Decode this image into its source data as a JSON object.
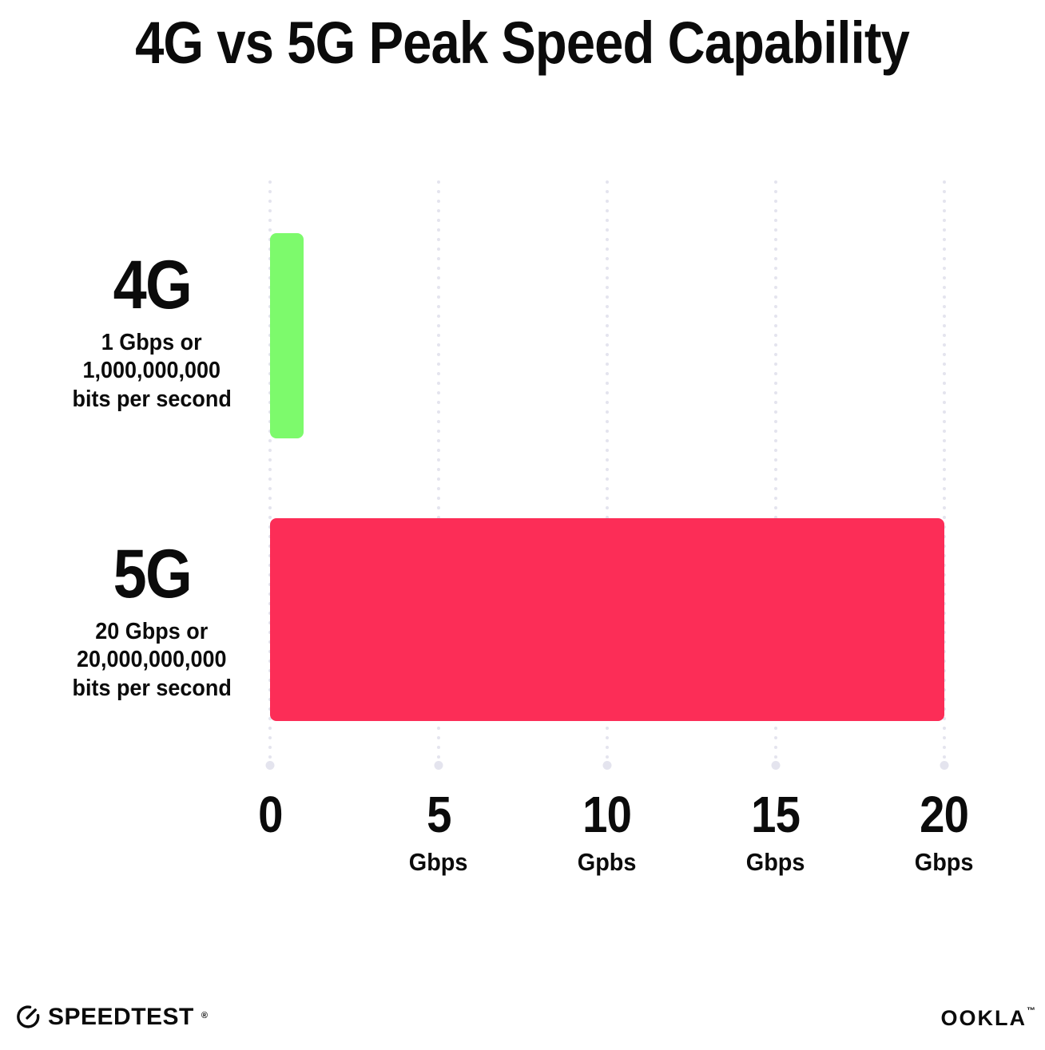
{
  "title": "4G vs 5G Peak Speed Capability",
  "chart_data": {
    "type": "bar",
    "orientation": "horizontal",
    "title": "4G vs 5G Peak Speed Capability",
    "categories": [
      "4G",
      "5G"
    ],
    "values": [
      1,
      20
    ],
    "value_unit": "Gbps",
    "xlim": [
      0,
      20
    ],
    "x_ticks": [
      {
        "label": "0",
        "unit": ""
      },
      {
        "label": "5",
        "unit": "Gbps"
      },
      {
        "label": "10",
        "unit": "Gpbs"
      },
      {
        "label": "15",
        "unit": "Gbps"
      },
      {
        "label": "20",
        "unit": "Gbps"
      }
    ],
    "gridlines": "dotted-vertical",
    "legend": "none",
    "bar_colors": [
      "#7DFA6C",
      "#FC2D57"
    ],
    "rows": [
      {
        "name": "4G",
        "desc_line1": "1 Gbps or",
        "desc_line2": "1,000,000,000",
        "desc_line3": "bits per second",
        "value_gbps": 1
      },
      {
        "name": "5G",
        "desc_line1": "20 Gbps or",
        "desc_line2": "20,000,000,000",
        "desc_line3": "bits per second",
        "value_gbps": 20
      }
    ]
  },
  "footer": {
    "speedtest_label": "SPEEDTEST",
    "speedtest_trademark": "®",
    "ookla_label": "OOKLA",
    "ookla_trademark": "™"
  },
  "colors": {
    "background": "#FFFFFF",
    "text": "#0B0B0B",
    "bar_4g": "#7DFA6C",
    "bar_5g": "#FC2D57",
    "gridline": "#E4E4EE"
  }
}
